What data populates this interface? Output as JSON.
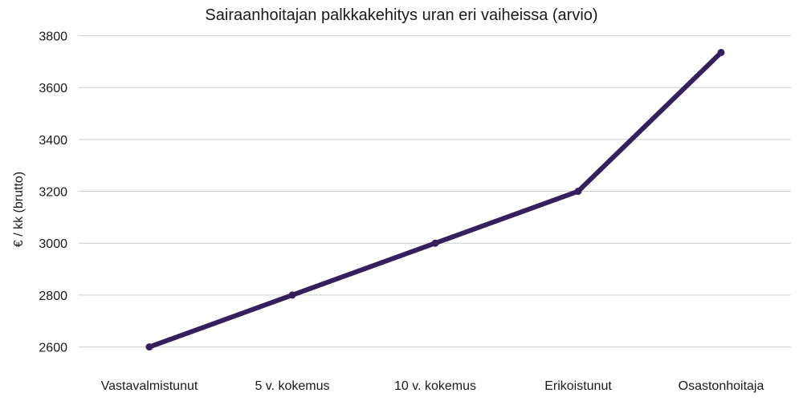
{
  "chart_data": {
    "type": "line",
    "title": "Sairaanhoitajan palkkakehitys uran eri vaiheissa (arvio)",
    "xlabel": "",
    "ylabel": "€ / kk (brutto)",
    "categories": [
      "Vastavalmistunut",
      "5 v. kokemus",
      "10 v. kokemus",
      "Erikoistunut",
      "Osastonhoitaja"
    ],
    "series": [
      {
        "values": [
          2600,
          2800,
          3000,
          3200,
          3735
        ],
        "color": "#35205e"
      }
    ],
    "ylim": [
      2540,
      3820
    ],
    "yticks": [
      2600,
      2800,
      3000,
      3200,
      3400,
      3600,
      3800
    ],
    "grid": true,
    "legend": "none"
  }
}
